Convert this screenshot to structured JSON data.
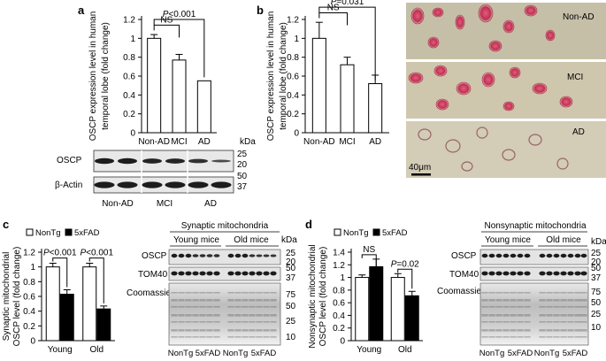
{
  "panels": {
    "a": {
      "letter": "a"
    },
    "b": {
      "letter": "b"
    },
    "c": {
      "letter": "c"
    },
    "d": {
      "letter": "d"
    }
  },
  "chart_data": [
    {
      "id": "a",
      "type": "bar",
      "ylabel": "OSCP expression level in human temporal lobe (fold change)",
      "categories": [
        "Non-AD",
        "MCI",
        "AD"
      ],
      "values": [
        1.0,
        0.77,
        0.55
      ],
      "errors": [
        0.04,
        0.06,
        0.0
      ],
      "ylim": [
        0,
        1.2
      ],
      "yticks": [
        0,
        0.2,
        0.4,
        0.6,
        0.8,
        1,
        1.2
      ],
      "annotations": [
        {
          "text": "NS",
          "from": 0,
          "to": 1
        },
        {
          "text": "P<0.001",
          "from": 0,
          "to": 2
        }
      ]
    },
    {
      "id": "b",
      "type": "bar",
      "ylabel": "OSCP expression level in human temporal lobe (fold change)",
      "categories": [
        "Non-AD",
        "MCI",
        "AD"
      ],
      "values": [
        1.0,
        0.72,
        0.52
      ],
      "errors": [
        0.17,
        0.08,
        0.09
      ],
      "ylim": [
        0,
        1.2
      ],
      "yticks": [
        0,
        0.2,
        0.4,
        0.6,
        0.8,
        1,
        1.2
      ],
      "annotations": [
        {
          "text": "NS",
          "from": 0,
          "to": 1
        },
        {
          "text": "P=0.031",
          "from": 0,
          "to": 2
        }
      ]
    },
    {
      "id": "c",
      "type": "bar",
      "ylabel": "Synaptic mitochondrial OSCP level (fold change)",
      "categories": [
        "Young",
        "Old"
      ],
      "series": [
        {
          "name": "NonTg",
          "values": [
            1.0,
            1.0
          ],
          "errors": [
            0.05,
            0.05
          ],
          "color": "#ffffff"
        },
        {
          "name": "5xFAD",
          "values": [
            0.63,
            0.43
          ],
          "errors": [
            0.06,
            0.04
          ],
          "color": "#000000"
        }
      ],
      "ylim": [
        0,
        1.2
      ],
      "yticks": [
        0,
        0.2,
        0.4,
        0.6,
        0.8,
        1,
        1.2
      ],
      "annotations": [
        {
          "text": "P<0.001",
          "group": 0
        },
        {
          "text": "P<0.001",
          "group": 1
        }
      ]
    },
    {
      "id": "d",
      "type": "bar",
      "ylabel": "Nonsynaptic mitochondrial OSCP level (fold change)",
      "categories": [
        "Young",
        "Old"
      ],
      "series": [
        {
          "name": "NonTg",
          "values": [
            1.0,
            1.0
          ],
          "errors": [
            0.04,
            0.06
          ],
          "color": "#ffffff"
        },
        {
          "name": "5xFAD",
          "values": [
            1.17,
            0.71
          ],
          "errors": [
            0.12,
            0.07
          ],
          "color": "#000000"
        }
      ],
      "ylim": [
        0,
        1.4
      ],
      "yticks": [
        0,
        0.2,
        0.4,
        0.6,
        0.8,
        1.0,
        1.2,
        1.4
      ],
      "annotations": [
        {
          "text": "NS",
          "group": 0
        },
        {
          "text": "P=0.02",
          "group": 1
        }
      ]
    }
  ],
  "blot_a": {
    "kda": "kDa",
    "rows": [
      {
        "label": "OSCP",
        "markers": [
          "25",
          "20"
        ]
      },
      {
        "label": "β-Actin",
        "markers": [
          "50",
          "37"
        ]
      }
    ],
    "groups": [
      "Non-AD",
      "MCI",
      "AD"
    ]
  },
  "micrographs_b": {
    "labels": [
      "Non-AD",
      "MCI",
      "AD"
    ],
    "scalebar": "40μm"
  },
  "blot_c": {
    "title": "Synaptic mitochondria",
    "kda": "kDa",
    "groups": [
      "Young mice",
      "Old mice"
    ],
    "rows": [
      {
        "label": "OSCP",
        "markers": [
          "25",
          "20"
        ]
      },
      {
        "label": "TOM40",
        "markers": [
          "50",
          "37"
        ]
      },
      {
        "label": "Coomassie",
        "markers": [
          "75",
          "50",
          "25",
          "10"
        ]
      }
    ],
    "bottom": [
      "NonTg",
      "5xFAD",
      "NonTg",
      "5xFAD"
    ]
  },
  "blot_d": {
    "title": "Nonsynaptic mitochondria",
    "kda": "kDa",
    "groups": [
      "Young mice",
      "Old mice"
    ],
    "rows": [
      {
        "label": "OSCP",
        "markers": [
          "25",
          "20"
        ]
      },
      {
        "label": "TOM40",
        "markers": [
          "50",
          "37"
        ]
      },
      {
        "label": "Coomassie",
        "markers": [
          "75",
          "50",
          "25",
          "10"
        ]
      }
    ],
    "bottom": [
      "NonTg",
      "5xFAD",
      "NonTg",
      "5xFAD"
    ]
  }
}
